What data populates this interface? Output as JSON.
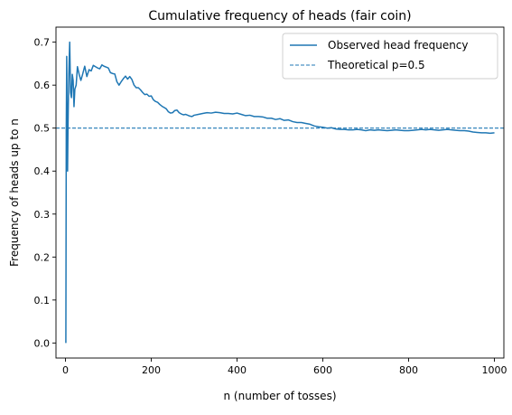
{
  "chart_data": {
    "type": "line",
    "title": "Cumulative frequency of heads (fair coin)",
    "xlabel": "n (number of tosses)",
    "ylabel": "Frequency of heads up to n",
    "xlim": [
      -22,
      1022
    ],
    "ylim": [
      -0.035,
      0.735
    ],
    "xticks": [
      0,
      200,
      400,
      600,
      800,
      1000
    ],
    "yticks": [
      0.0,
      0.1,
      0.2,
      0.3,
      0.4,
      0.5,
      0.6,
      0.7
    ],
    "xtick_labels": [
      "0",
      "200",
      "400",
      "600",
      "800",
      "1000"
    ],
    "ytick_labels": [
      "0.0",
      "0.1",
      "0.2",
      "0.3",
      "0.4",
      "0.5",
      "0.6",
      "0.7"
    ],
    "grid": false,
    "legend_position": "top-right",
    "series": [
      {
        "name": "Observed head frequency",
        "style": "solid",
        "color": "#1f77b4",
        "x": [
          1,
          2,
          3,
          4,
          5,
          6,
          7,
          8,
          9,
          10,
          12,
          14,
          16,
          18,
          20,
          22,
          25,
          28,
          32,
          36,
          40,
          45,
          50,
          55,
          60,
          65,
          70,
          75,
          80,
          85,
          90,
          95,
          100,
          105,
          110,
          115,
          120,
          125,
          130,
          135,
          140,
          145,
          150,
          155,
          160,
          165,
          170,
          175,
          180,
          185,
          190,
          195,
          200,
          205,
          210,
          215,
          220,
          225,
          230,
          235,
          240,
          245,
          250,
          255,
          260,
          265,
          270,
          275,
          280,
          285,
          290,
          295,
          300,
          310,
          320,
          330,
          340,
          350,
          360,
          370,
          380,
          390,
          400,
          410,
          420,
          430,
          440,
          450,
          460,
          470,
          480,
          490,
          500,
          510,
          520,
          530,
          540,
          550,
          560,
          570,
          580,
          590,
          600,
          610,
          620,
          630,
          640,
          650,
          660,
          670,
          680,
          690,
          700,
          710,
          720,
          730,
          740,
          750,
          760,
          770,
          780,
          790,
          800,
          810,
          820,
          830,
          840,
          850,
          860,
          870,
          880,
          890,
          900,
          910,
          920,
          930,
          940,
          950,
          960,
          970,
          980,
          990,
          1000
        ],
        "y": [
          0.0,
          0.5,
          0.667,
          0.5,
          0.4,
          0.5,
          0.571,
          0.625,
          0.667,
          0.7,
          0.583,
          0.571,
          0.625,
          0.611,
          0.55,
          0.591,
          0.6,
          0.643,
          0.625,
          0.611,
          0.625,
          0.644,
          0.62,
          0.636,
          0.633,
          0.646,
          0.643,
          0.64,
          0.638,
          0.647,
          0.644,
          0.642,
          0.64,
          0.629,
          0.627,
          0.626,
          0.608,
          0.6,
          0.608,
          0.615,
          0.621,
          0.614,
          0.62,
          0.613,
          0.6,
          0.594,
          0.594,
          0.589,
          0.583,
          0.578,
          0.579,
          0.574,
          0.575,
          0.566,
          0.562,
          0.56,
          0.555,
          0.551,
          0.548,
          0.545,
          0.538,
          0.535,
          0.536,
          0.541,
          0.542,
          0.536,
          0.533,
          0.531,
          0.532,
          0.53,
          0.528,
          0.527,
          0.53,
          0.532,
          0.534,
          0.536,
          0.535,
          0.537,
          0.536,
          0.534,
          0.534,
          0.533,
          0.535,
          0.532,
          0.529,
          0.53,
          0.527,
          0.527,
          0.526,
          0.523,
          0.523,
          0.52,
          0.522,
          0.518,
          0.519,
          0.515,
          0.513,
          0.513,
          0.511,
          0.509,
          0.505,
          0.503,
          0.502,
          0.5,
          0.501,
          0.498,
          0.497,
          0.497,
          0.496,
          0.496,
          0.497,
          0.496,
          0.494,
          0.496,
          0.495,
          0.496,
          0.495,
          0.494,
          0.495,
          0.496,
          0.495,
          0.494,
          0.494,
          0.495,
          0.496,
          0.497,
          0.496,
          0.497,
          0.496,
          0.495,
          0.496,
          0.497,
          0.496,
          0.495,
          0.494,
          0.494,
          0.493,
          0.491,
          0.49,
          0.489,
          0.489,
          0.488,
          0.489
        ]
      },
      {
        "name": "Theoretical p=0.5",
        "style": "dashed",
        "color": "#1f77b4",
        "value": 0.5
      }
    ]
  }
}
